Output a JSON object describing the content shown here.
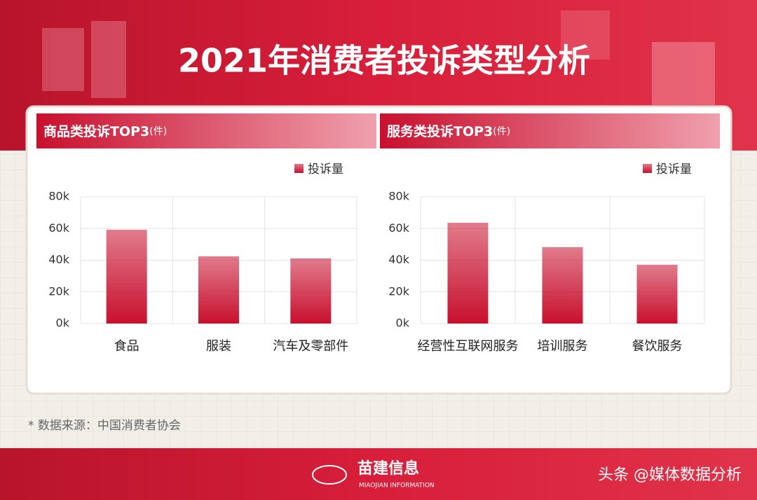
{
  "header": {
    "title": "2021年消费者投诉类型分析"
  },
  "chart_data": [
    {
      "type": "bar",
      "title": "商品类投诉TOP3",
      "unit": "(件)",
      "categories": [
        "食品",
        "服装",
        "汽车及零部件"
      ],
      "series": [
        {
          "name": "投诉量",
          "color": "#c8102e",
          "values": [
            59200,
            42400,
            41100
          ]
        }
      ],
      "ylim": [
        0,
        80000
      ],
      "yticks": [
        {
          "value": 0,
          "label": "0k"
        },
        {
          "value": 20000,
          "label": "20k"
        },
        {
          "value": 40000,
          "label": "40k"
        },
        {
          "value": 60000,
          "label": "60k"
        },
        {
          "value": 80000,
          "label": "80k"
        }
      ],
      "grid": true,
      "legend": "top-right"
    },
    {
      "type": "bar",
      "title": "服务类投诉TOP3",
      "unit": "(件)",
      "categories": [
        "经营性互联网服务",
        "培训服务",
        "餐饮服务"
      ],
      "series": [
        {
          "name": "投诉量",
          "color": "#c8102e",
          "values": [
            63600,
            48200,
            37100
          ]
        }
      ],
      "ylim": [
        0,
        80000
      ],
      "yticks": [
        {
          "value": 0,
          "label": "0k"
        },
        {
          "value": 20000,
          "label": "20k"
        },
        {
          "value": 40000,
          "label": "40k"
        },
        {
          "value": 60000,
          "label": "60k"
        },
        {
          "value": 80000,
          "label": "80k"
        }
      ],
      "grid": true,
      "legend": "top-right"
    }
  ],
  "footer": {
    "source": "* 数据来源：中国消费者协会",
    "logo": "苗建信息",
    "logo_sub": "MIAOJIAN INFORMATION",
    "watermark": "头条 @媒体数据分析"
  }
}
